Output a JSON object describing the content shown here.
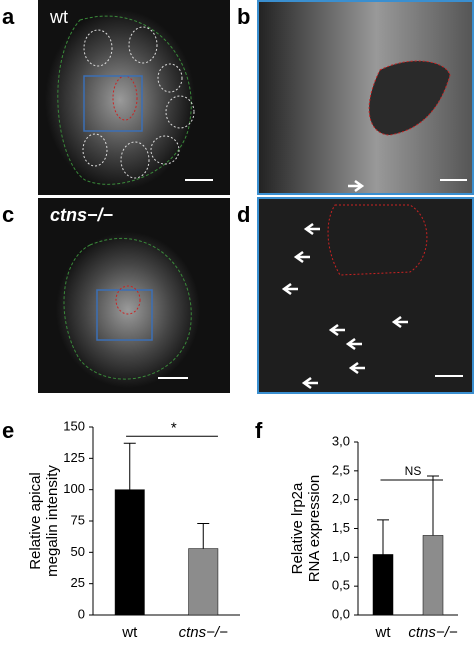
{
  "panels": [
    {
      "label": "a",
      "caption": "wt"
    },
    {
      "label": "b"
    },
    {
      "label": "c",
      "caption": "ctns−/−"
    },
    {
      "label": "d"
    }
  ],
  "chart_data": [
    {
      "type": "bar",
      "panel_label": "e",
      "ylabel": [
        "Relative apical",
        "megalin intensity"
      ],
      "categories": [
        "wt",
        "ctns−/−"
      ],
      "values": [
        100,
        53
      ],
      "errors": [
        37,
        20
      ],
      "colors": [
        "#000000",
        "#8c8c8c"
      ],
      "ylim": [
        0,
        150
      ],
      "yticks": [
        0,
        25,
        50,
        75,
        100,
        125,
        150
      ],
      "annotation": "*"
    },
    {
      "type": "bar",
      "panel_label": "f",
      "ylabel": [
        "Relative lrp2a",
        "RNA expression"
      ],
      "categories": [
        "wt",
        "ctns−/−"
      ],
      "values": [
        1.05,
        1.38
      ],
      "errors": [
        0.6,
        1.03
      ],
      "colors": [
        "#000000",
        "#8c8c8c"
      ],
      "ylim": [
        0,
        3
      ],
      "yticks": [
        {
          "value": 0,
          "label": "0,0"
        },
        {
          "value": 0.5,
          "label": "0,5"
        },
        {
          "value": 1,
          "label": "1,0"
        },
        {
          "value": 1.5,
          "label": "1,5"
        },
        {
          "value": 2,
          "label": "2,0"
        },
        {
          "value": 2.5,
          "label": "2,5"
        },
        {
          "value": 3,
          "label": "3,0"
        }
      ],
      "annotation": "NS"
    }
  ]
}
